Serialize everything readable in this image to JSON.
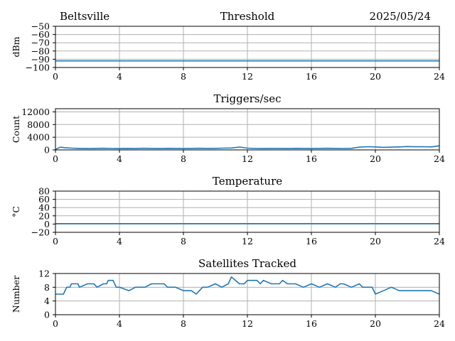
{
  "header": {
    "location": "Beltsville",
    "date": "2025/05/24"
  },
  "colors": {
    "series": "#1f77b4",
    "grid": "#b0b0b0"
  },
  "chart_data": [
    {
      "type": "line",
      "title": "Threshold",
      "ylabel": "dBm",
      "xlabel": "",
      "xlim": [
        0,
        24
      ],
      "ylim": [
        -100,
        -50
      ],
      "xticks": [
        0,
        4,
        8,
        12,
        16,
        20,
        24
      ],
      "yticks": [
        -100,
        -90,
        -80,
        -70,
        -60,
        -50
      ],
      "xtick_labels": [
        "0",
        "4",
        "8",
        "12",
        "16",
        "20",
        "24"
      ],
      "ytick_labels": [
        "−100",
        "−90",
        "−80",
        "−70",
        "−60",
        "−50"
      ],
      "grid": true,
      "series": [
        {
          "x": [
            0,
            24
          ],
          "y": [
            -92,
            -92
          ]
        }
      ]
    },
    {
      "type": "line",
      "title": "Triggers/sec",
      "ylabel": "Count",
      "xlabel": "",
      "xlim": [
        0,
        24
      ],
      "ylim": [
        0,
        13000
      ],
      "xticks": [
        0,
        4,
        8,
        12,
        16,
        20,
        24
      ],
      "yticks": [
        0,
        4000,
        8000,
        12000
      ],
      "xtick_labels": [
        "0",
        "4",
        "8",
        "12",
        "16",
        "20",
        "24"
      ],
      "ytick_labels": [
        "0",
        "4000",
        "8000",
        "12000"
      ],
      "grid": true,
      "series": [
        {
          "x": [
            0,
            0.3,
            0.6,
            1,
            1.5,
            2,
            2.5,
            3,
            3.5,
            4,
            4.5,
            5,
            5.5,
            6,
            6.5,
            7,
            7.5,
            8,
            8.5,
            9,
            9.5,
            10,
            10.5,
            11,
            11.5,
            12,
            12.5,
            13,
            13.5,
            14,
            14.5,
            15,
            15.5,
            16,
            16.5,
            17,
            17.5,
            18,
            18.5,
            19,
            19.5,
            20,
            20.5,
            21,
            21.5,
            22,
            22.5,
            23,
            23.5,
            24
          ],
          "y": [
            150,
            850,
            700,
            550,
            480,
            430,
            470,
            520,
            450,
            420,
            480,
            430,
            520,
            470,
            420,
            490,
            460,
            430,
            480,
            520,
            460,
            500,
            550,
            600,
            900,
            550,
            450,
            420,
            480,
            460,
            430,
            490,
            460,
            430,
            470,
            520,
            480,
            450,
            500,
            900,
            1000,
            950,
            800,
            880,
            950,
            1050,
            980,
            1000,
            950,
            1300
          ]
        }
      ]
    },
    {
      "type": "line",
      "title": "Temperature",
      "ylabel": "°C",
      "xlabel": "",
      "xlim": [
        0,
        24
      ],
      "ylim": [
        -20,
        80
      ],
      "xticks": [
        0,
        4,
        8,
        12,
        16,
        20,
        24
      ],
      "yticks": [
        -20,
        0,
        20,
        40,
        60,
        80
      ],
      "xtick_labels": [
        "0",
        "4",
        "8",
        "12",
        "16",
        "20",
        "24"
      ],
      "ytick_labels": [
        "−20",
        "0",
        "20",
        "40",
        "60",
        "80"
      ],
      "grid": true,
      "series": [
        {
          "x": [
            0,
            24
          ],
          "y": [
            1,
            1
          ]
        }
      ]
    },
    {
      "type": "line",
      "title": "Satellites Tracked",
      "ylabel": "Number",
      "xlabel": "",
      "xlim": [
        0,
        24
      ],
      "ylim": [
        0,
        12
      ],
      "xticks": [
        0,
        4,
        8,
        12,
        16,
        20,
        24
      ],
      "yticks": [
        0,
        4,
        8,
        12
      ],
      "xtick_labels": [
        "0",
        "4",
        "8",
        "12",
        "16",
        "20",
        "24"
      ],
      "ytick_labels": [
        "0",
        "4",
        "8",
        "12"
      ],
      "grid": true,
      "series": [
        {
          "x": [
            0,
            0.5,
            0.6,
            0.7,
            0.9,
            1.0,
            1.4,
            1.5,
            2.0,
            2.4,
            2.6,
            3.0,
            3.2,
            3.3,
            3.6,
            3.8,
            4.0,
            4.6,
            5.0,
            5.6,
            6.0,
            6.8,
            7.0,
            7.5,
            8.0,
            8.5,
            8.8,
            9.0,
            9.2,
            9.5,
            10.0,
            10.4,
            10.8,
            11.0,
            11.5,
            11.8,
            12.0,
            12.6,
            12.8,
            13.0,
            13.5,
            14.0,
            14.2,
            14.5,
            15.0,
            15.5,
            16.0,
            16.5,
            17.0,
            17.5,
            17.8,
            18.0,
            18.5,
            19.0,
            19.2,
            19.8,
            20.0,
            20.5,
            21.0,
            21.5,
            22.0,
            22.5,
            23.0,
            23.5,
            24.0
          ],
          "y": [
            6,
            6,
            7,
            8,
            8,
            9,
            9,
            8,
            9,
            9,
            8,
            9,
            9,
            10,
            10,
            8,
            8,
            7,
            8,
            8,
            9,
            9,
            8,
            8,
            7,
            7,
            6,
            7,
            8,
            8,
            9,
            8,
            9,
            11,
            9,
            9,
            10,
            10,
            9,
            10,
            9,
            9,
            10,
            9,
            9,
            8,
            9,
            8,
            9,
            8,
            9,
            9,
            8,
            9,
            8,
            8,
            6,
            7,
            8,
            7,
            7,
            7,
            7,
            7,
            6
          ]
        }
      ]
    }
  ]
}
